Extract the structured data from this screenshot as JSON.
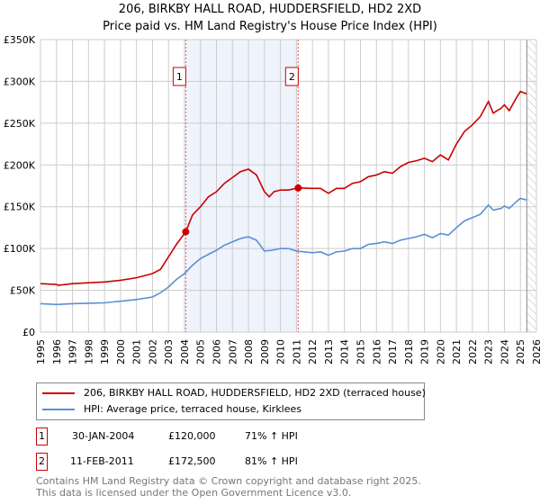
{
  "chart_data": {
    "type": "line",
    "title": "206, BIRKBY HALL ROAD, HUDDERSFIELD, HD2 2XD",
    "subtitle": "Price paid vs. HM Land Registry's House Price Index (HPI)",
    "xlim": [
      1995,
      2026
    ],
    "ylim": [
      0,
      350000
    ],
    "y_ticks": [
      {
        "v": 0,
        "label": "£0"
      },
      {
        "v": 50000,
        "label": "£50K"
      },
      {
        "v": 100000,
        "label": "£100K"
      },
      {
        "v": 150000,
        "label": "£150K"
      },
      {
        "v": 200000,
        "label": "£200K"
      },
      {
        "v": 250000,
        "label": "£250K"
      },
      {
        "v": 300000,
        "label": "£300K"
      },
      {
        "v": 350000,
        "label": "£350K"
      }
    ],
    "x_ticks": [
      "1995",
      "1996",
      "1997",
      "1998",
      "1999",
      "2000",
      "2001",
      "2002",
      "2003",
      "2004",
      "2005",
      "2006",
      "2007",
      "2008",
      "2009",
      "2010",
      "2011",
      "2012",
      "2013",
      "2014",
      "2015",
      "2016",
      "2017",
      "2018",
      "2019",
      "2020",
      "2021",
      "2022",
      "2023",
      "2024",
      "2025",
      "2026"
    ],
    "grid": true,
    "shaded_range": [
      2004.08,
      2011.11
    ],
    "forecast_from": 2025.4,
    "series": [
      {
        "name": "206, BIRKBY HALL ROAD, HUDDERSFIELD, HD2 2XD (terraced house)",
        "color": "#cc0000",
        "x": [
          1995,
          1996,
          1996.1,
          1997,
          1998,
          1999,
          2000,
          2001,
          2002,
          2002.5,
          2003,
          2003.5,
          2004.08,
          2004.5,
          2005,
          2005.5,
          2006,
          2006.5,
          2007,
          2007.5,
          2008,
          2008.5,
          2009,
          2009.3,
          2009.6,
          2010,
          2010.5,
          2011.11,
          2012,
          2012.5,
          2013,
          2013.5,
          2014,
          2014.5,
          2015,
          2015.5,
          2016,
          2016.5,
          2017,
          2017.5,
          2018,
          2018.5,
          2019,
          2019.5,
          2020,
          2020.5,
          2021,
          2021.5,
          2022,
          2022.5,
          2023,
          2023.3,
          2023.8,
          2024,
          2024.3,
          2024.8,
          2025,
          2025.4
        ],
        "y": [
          58000,
          57000,
          56000,
          58000,
          59000,
          60000,
          62000,
          65000,
          70000,
          75000,
          90000,
          105000,
          120000,
          140000,
          150000,
          162000,
          168000,
          178000,
          185000,
          192000,
          195000,
          188000,
          168000,
          162000,
          168000,
          170000,
          170000,
          172500,
          172000,
          172000,
          166000,
          172000,
          172000,
          178000,
          180000,
          186000,
          188000,
          192000,
          190000,
          198000,
          203000,
          205000,
          208000,
          204000,
          212000,
          206000,
          225000,
          240000,
          248000,
          258000,
          276000,
          262000,
          268000,
          272000,
          265000,
          282000,
          288000,
          285000
        ]
      },
      {
        "name": "HPI: Average price, terraced house, Kirklees",
        "color": "#5b8fd4",
        "x": [
          1995,
          1996,
          1997,
          1998,
          1999,
          2000,
          2001,
          2002,
          2002.5,
          2003,
          2003.5,
          2004,
          2004.5,
          2005,
          2005.5,
          2006,
          2006.5,
          2007,
          2007.5,
          2008,
          2008.5,
          2009,
          2009.5,
          2010,
          2010.5,
          2011,
          2012,
          2012.5,
          2013,
          2013.5,
          2014,
          2014.5,
          2015,
          2015.5,
          2016,
          2016.5,
          2017,
          2017.5,
          2018,
          2018.5,
          2019,
          2019.5,
          2020,
          2020.5,
          2021,
          2021.5,
          2022,
          2022.5,
          2023,
          2023.3,
          2023.8,
          2024,
          2024.3,
          2024.8,
          2025,
          2025.4
        ],
        "y": [
          34000,
          33000,
          34000,
          34500,
          35000,
          37000,
          39000,
          42000,
          47000,
          54000,
          63000,
          70000,
          80000,
          88000,
          93000,
          98000,
          104000,
          108000,
          112000,
          114000,
          110000,
          97000,
          98000,
          100000,
          100000,
          97000,
          95000,
          96000,
          92000,
          96000,
          97000,
          100000,
          100000,
          105000,
          106000,
          108000,
          106000,
          110000,
          112000,
          114000,
          117000,
          113000,
          118000,
          116000,
          125000,
          133000,
          137000,
          141000,
          152000,
          146000,
          148000,
          151000,
          148000,
          157000,
          160000,
          158000
        ]
      }
    ],
    "sales": [
      {
        "label": "1",
        "x": 2004.08,
        "y": 120000
      },
      {
        "label": "2",
        "x": 2011.11,
        "y": 172500
      }
    ]
  },
  "legend": {
    "property": "206, BIRKBY HALL ROAD, HUDDERSFIELD, HD2 2XD (terraced house)",
    "hpi": "HPI: Average price, terraced house, Kirklees"
  },
  "sales_table": [
    {
      "num": "1",
      "date": "30-JAN-2004",
      "price": "£120,000",
      "hpi": "71% ↑ HPI"
    },
    {
      "num": "2",
      "date": "11-FEB-2011",
      "price": "£172,500",
      "hpi": "81% ↑ HPI"
    }
  ],
  "footer": {
    "line1": "Contains HM Land Registry data © Crown copyright and database right 2025.",
    "line2": "This data is licensed under the Open Government Licence v3.0."
  }
}
